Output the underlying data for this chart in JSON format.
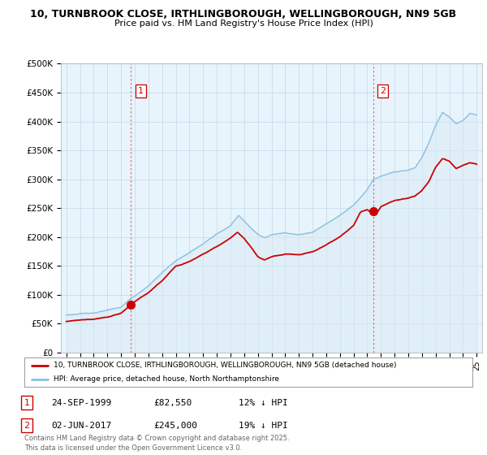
{
  "title_line1": "10, TURNBROOK CLOSE, IRTHLINGBOROUGH, WELLINGBOROUGH, NN9 5GB",
  "title_line2": "Price paid vs. HM Land Registry's House Price Index (HPI)",
  "ylim": [
    0,
    500000
  ],
  "yticks": [
    0,
    50000,
    100000,
    150000,
    200000,
    250000,
    300000,
    350000,
    400000,
    450000,
    500000
  ],
  "ytick_labels": [
    "£0",
    "£50K",
    "£100K",
    "£150K",
    "£200K",
    "£250K",
    "£300K",
    "£350K",
    "£400K",
    "£450K",
    "£500K"
  ],
  "xlim_start": 1994.6,
  "xlim_end": 2025.4,
  "hpi_color": "#89bfdf",
  "hpi_fill_color": "#daeaf5",
  "price_color": "#cc0000",
  "vline_color": "#e87070",
  "sale1_x": 1999.73,
  "sale1_y": 82550,
  "sale2_x": 2017.42,
  "sale2_y": 245000,
  "legend_line1": "10, TURNBROOK CLOSE, IRTHLINGBOROUGH, WELLINGBOROUGH, NN9 5GB (detached house)",
  "legend_line2": "HPI: Average price, detached house, North Northamptonshire",
  "table_row1": [
    "1",
    "24-SEP-1999",
    "£82,550",
    "12% ↓ HPI"
  ],
  "table_row2": [
    "2",
    "02-JUN-2017",
    "£245,000",
    "19% ↓ HPI"
  ],
  "footnote": "Contains HM Land Registry data © Crown copyright and database right 2025.\nThis data is licensed under the Open Government Licence v3.0.",
  "bg_color": "#ffffff",
  "chart_bg_color": "#e8f4fc",
  "grid_color": "#c0d8e8"
}
